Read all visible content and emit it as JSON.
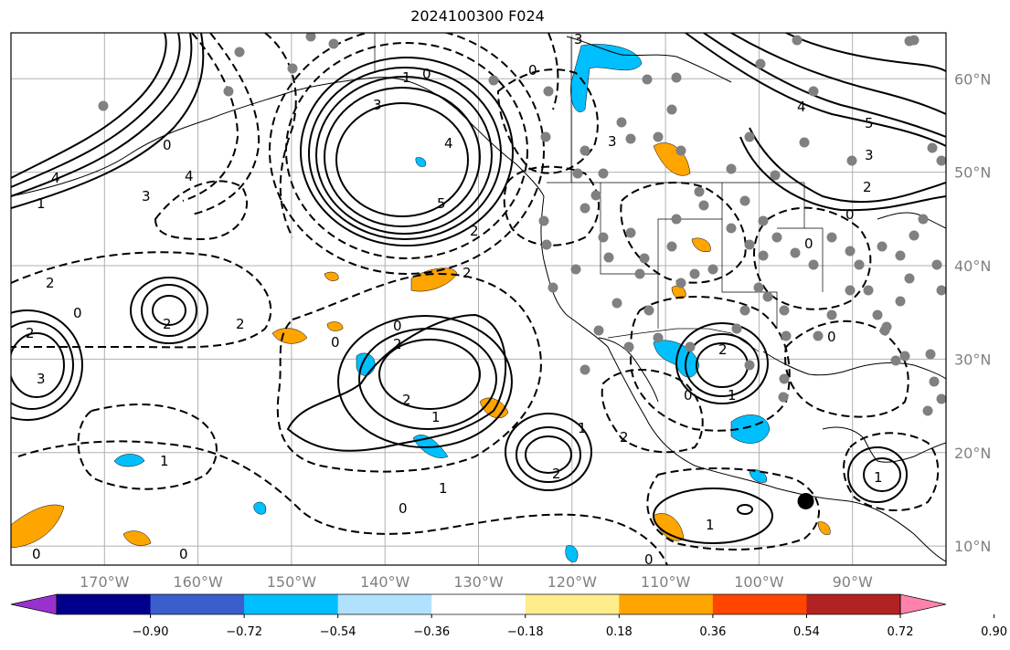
{
  "title": "2024100300 F024",
  "map": {
    "lon_range": [
      -180,
      -80
    ],
    "lat_range": [
      8,
      65
    ],
    "lat_labels": [
      "10°N",
      "20°N",
      "30°N",
      "40°N",
      "50°N",
      "60°N"
    ],
    "lon_labels": [
      "170°W",
      "160°W",
      "150°W",
      "140°W",
      "130°W",
      "120°W",
      "110°W",
      "100°W",
      "90°W"
    ],
    "marker": {
      "lon": -95,
      "lat": 14.8,
      "color": "#000000"
    },
    "station_color": "#808080"
  },
  "colorbar": {
    "colors": [
      "#9932CC",
      "#00008B",
      "#3A5FCD",
      "#00BFFF",
      "#B0E2FF",
      "#FFFFFF",
      "#FFEC8B",
      "#FFA500",
      "#FF4500",
      "#B22222",
      "#FF82AB"
    ],
    "ticks": [
      "−0.90",
      "−0.72",
      "−0.54",
      "−0.36",
      "−0.18",
      "0.18",
      "0.36",
      "0.54",
      "0.72",
      "0.90"
    ]
  },
  "contour_labels": [
    "0",
    "1",
    "2",
    "3",
    "4",
    "5"
  ]
}
